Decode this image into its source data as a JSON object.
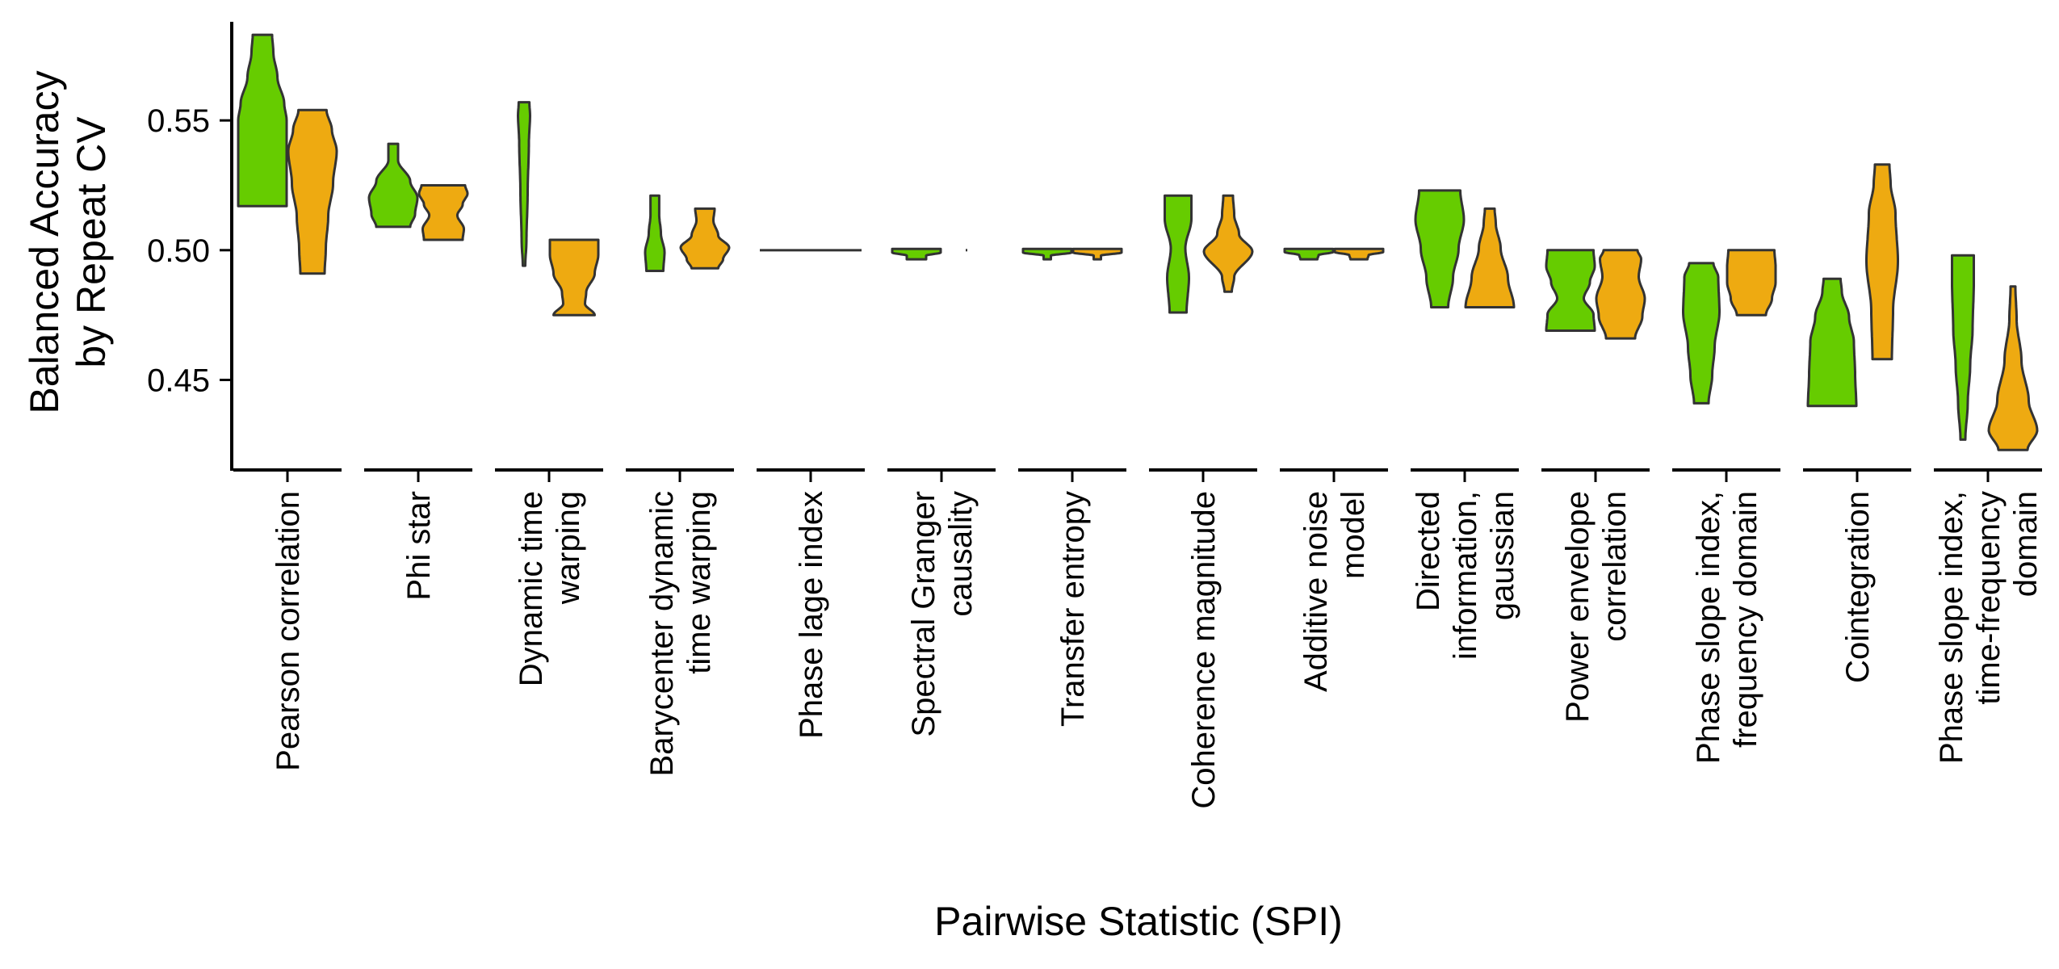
{
  "chart_data": {
    "type": "violin",
    "title": "",
    "xlabel": "Pairwise Statistic (SPI)",
    "ylabel": [
      "Balanced Accuracy",
      "by Repeat CV"
    ],
    "ylim": [
      0.415,
      0.588
    ],
    "yticks": [
      "0.45",
      "0.50",
      "0.55"
    ],
    "legend": "none",
    "grid": false,
    "series_colors": [
      "#66CC00",
      "#EEAA11"
    ],
    "outline_color": "#333333",
    "categories": [
      {
        "label": [
          "Pearson correlation"
        ],
        "violins": [
          {
            "min": 0.517,
            "max": 0.583,
            "width_profile": [
              [
                0,
                1
              ],
              [
                0.5,
                1
              ],
              [
                0.6,
                0.9
              ],
              [
                0.75,
                0.62
              ],
              [
                0.9,
                0.45
              ],
              [
                1,
                0.4
              ]
            ]
          },
          {
            "min": 0.491,
            "max": 0.554,
            "width_profile": [
              [
                0,
                0.5
              ],
              [
                0.15,
                0.55
              ],
              [
                0.35,
                0.65
              ],
              [
                0.55,
                0.85
              ],
              [
                0.75,
                1
              ],
              [
                0.88,
                0.8
              ],
              [
                1,
                0.58
              ]
            ]
          }
        ]
      },
      {
        "label": [
          "Phi star"
        ],
        "violins": [
          {
            "min": 0.509,
            "max": 0.541,
            "width_profile": [
              [
                0,
                0.7
              ],
              [
                0.15,
                0.9
              ],
              [
                0.35,
                1
              ],
              [
                0.55,
                0.7
              ],
              [
                0.8,
                0.2
              ],
              [
                1,
                0.2
              ]
            ]
          },
          {
            "min": 0.504,
            "max": 0.525,
            "width_profile": [
              [
                0,
                0.8
              ],
              [
                0.2,
                0.85
              ],
              [
                0.45,
                0.58
              ],
              [
                0.65,
                0.8
              ],
              [
                0.85,
                1
              ],
              [
                1,
                0.9
              ]
            ]
          }
        ]
      },
      {
        "label": [
          "Dynamic time",
          "warping"
        ],
        "violins": [
          {
            "min": 0.494,
            "max": 0.557,
            "width_profile": [
              [
                0,
                0.05
              ],
              [
                0.15,
                0.1
              ],
              [
                0.45,
                0.15
              ],
              [
                0.75,
                0.2
              ],
              [
                0.92,
                0.25
              ],
              [
                1,
                0.22
              ]
            ]
          },
          {
            "min": 0.475,
            "max": 0.504,
            "width_profile": [
              [
                0,
                0.85
              ],
              [
                0.15,
                0.45
              ],
              [
                0.3,
                0.5
              ],
              [
                0.55,
                0.85
              ],
              [
                0.8,
                1
              ],
              [
                1,
                1
              ]
            ]
          }
        ]
      },
      {
        "label": [
          "Barycenter dynamic",
          "time warping"
        ],
        "violins": [
          {
            "min": 0.492,
            "max": 0.521,
            "width_profile": [
              [
                0,
                0.35
              ],
              [
                0.25,
                0.4
              ],
              [
                0.5,
                0.25
              ],
              [
                0.75,
                0.18
              ],
              [
                1,
                0.18
              ]
            ]
          },
          {
            "min": 0.493,
            "max": 0.516,
            "width_profile": [
              [
                0,
                0.55
              ],
              [
                0.15,
                0.75
              ],
              [
                0.35,
                1
              ],
              [
                0.55,
                0.55
              ],
              [
                0.8,
                0.35
              ],
              [
                1,
                0.4
              ]
            ]
          }
        ]
      },
      {
        "label": [
          "Phase lage index"
        ],
        "violins": [
          {
            "min": 0.5,
            "max": 0.5,
            "flat_halfwidth_px": 63
          }
        ]
      },
      {
        "label": [
          "Spectral Granger",
          "causality"
        ],
        "violins": [
          {
            "min": 0.4965,
            "max": 0.5005,
            "width_profile": [
              [
                0,
                0.4
              ],
              [
                0.35,
                0.4
              ],
              [
                0.65,
                1
              ],
              [
                1,
                1
              ]
            ]
          },
          {
            "min": 0.5,
            "max": 0.5,
            "flat_halfwidth_px": 1
          }
        ]
      },
      {
        "label": [
          "Transfer entropy"
        ],
        "violins": [
          {
            "min": 0.4965,
            "max": 0.5005,
            "width_profile": [
              [
                0,
                0.15
              ],
              [
                0.35,
                0.15
              ],
              [
                0.65,
                1
              ],
              [
                1,
                1
              ]
            ]
          },
          {
            "min": 0.4965,
            "max": 0.5005,
            "width_profile": [
              [
                0,
                0.15
              ],
              [
                0.35,
                0.15
              ],
              [
                0.65,
                1
              ],
              [
                1,
                1
              ]
            ]
          }
        ]
      },
      {
        "label": [
          "Coherence magnitude"
        ],
        "violins": [
          {
            "min": 0.476,
            "max": 0.521,
            "width_profile": [
              [
                0,
                0.35
              ],
              [
                0.3,
                0.45
              ],
              [
                0.55,
                0.3
              ],
              [
                0.8,
                0.55
              ],
              [
                1,
                0.55
              ]
            ]
          },
          {
            "min": 0.484,
            "max": 0.521,
            "width_profile": [
              [
                0,
                0.15
              ],
              [
                0.15,
                0.25
              ],
              [
                0.42,
                1
              ],
              [
                0.6,
                0.45
              ],
              [
                0.8,
                0.25
              ],
              [
                1,
                0.2
              ]
            ]
          }
        ]
      },
      {
        "label": [
          "Additive noise",
          "model"
        ],
        "violins": [
          {
            "min": 0.4965,
            "max": 0.5005,
            "width_profile": [
              [
                0,
                0.35
              ],
              [
                0.4,
                0.4
              ],
              [
                0.7,
                1
              ],
              [
                1,
                1
              ]
            ]
          },
          {
            "min": 0.4965,
            "max": 0.5005,
            "width_profile": [
              [
                0,
                0.35
              ],
              [
                0.4,
                0.4
              ],
              [
                0.7,
                1
              ],
              [
                1,
                1
              ]
            ]
          }
        ]
      },
      {
        "label": [
          "Directed",
          "information,",
          "gaussian"
        ],
        "violins": [
          {
            "min": 0.478,
            "max": 0.523,
            "width_profile": [
              [
                0,
                0.35
              ],
              [
                0.25,
                0.55
              ],
              [
                0.5,
                0.78
              ],
              [
                0.75,
                1
              ],
              [
                1,
                0.85
              ]
            ]
          },
          {
            "min": 0.478,
            "max": 0.516,
            "width_profile": [
              [
                0,
                1
              ],
              [
                0.3,
                0.75
              ],
              [
                0.6,
                0.45
              ],
              [
                0.85,
                0.25
              ],
              [
                1,
                0.2
              ]
            ]
          }
        ]
      },
      {
        "label": [
          "Power envelope",
          "correlation"
        ],
        "violins": [
          {
            "min": 0.469,
            "max": 0.5,
            "width_profile": [
              [
                0,
                1
              ],
              [
                0.2,
                0.95
              ],
              [
                0.4,
                0.55
              ],
              [
                0.6,
                0.8
              ],
              [
                0.8,
                1
              ],
              [
                1,
                0.95
              ]
            ]
          },
          {
            "min": 0.466,
            "max": 0.5,
            "width_profile": [
              [
                0,
                0.6
              ],
              [
                0.25,
                0.9
              ],
              [
                0.45,
                1
              ],
              [
                0.7,
                0.75
              ],
              [
                0.9,
                0.85
              ],
              [
                1,
                0.7
              ]
            ]
          }
        ]
      },
      {
        "label": [
          "Phase slope index,",
          "frequency domain"
        ],
        "violins": [
          {
            "min": 0.441,
            "max": 0.495,
            "width_profile": [
              [
                0,
                0.3
              ],
              [
                0.2,
                0.45
              ],
              [
                0.4,
                0.55
              ],
              [
                0.65,
                0.75
              ],
              [
                0.9,
                0.7
              ],
              [
                1,
                0.5
              ]
            ]
          },
          {
            "min": 0.475,
            "max": 0.5,
            "width_profile": [
              [
                0,
                0.6
              ],
              [
                0.25,
                0.85
              ],
              [
                0.5,
                1
              ],
              [
                0.75,
                1
              ],
              [
                1,
                0.95
              ]
            ]
          }
        ]
      },
      {
        "label": [
          "Cointegration"
        ],
        "violins": [
          {
            "min": 0.44,
            "max": 0.489,
            "width_profile": [
              [
                0,
                1
              ],
              [
                0.25,
                0.95
              ],
              [
                0.5,
                0.9
              ],
              [
                0.7,
                0.7
              ],
              [
                0.9,
                0.4
              ],
              [
                1,
                0.35
              ]
            ]
          },
          {
            "min": 0.458,
            "max": 0.533,
            "width_profile": [
              [
                0,
                0.4
              ],
              [
                0.25,
                0.45
              ],
              [
                0.5,
                0.65
              ],
              [
                0.75,
                0.55
              ],
              [
                0.9,
                0.35
              ],
              [
                1,
                0.3
              ]
            ]
          }
        ]
      },
      {
        "label": [
          "Phase slope index,",
          "time-frequency",
          "domain"
        ],
        "violins": [
          {
            "min": 0.427,
            "max": 0.498,
            "width_profile": [
              [
                0,
                0.1
              ],
              [
                0.2,
                0.2
              ],
              [
                0.4,
                0.3
              ],
              [
                0.6,
                0.4
              ],
              [
                0.85,
                0.45
              ],
              [
                1,
                0.45
              ]
            ]
          },
          {
            "min": 0.423,
            "max": 0.486,
            "width_profile": [
              [
                0,
                0.6
              ],
              [
                0.12,
                1
              ],
              [
                0.3,
                0.65
              ],
              [
                0.55,
                0.35
              ],
              [
                0.8,
                0.15
              ],
              [
                1,
                0.1
              ]
            ]
          }
        ]
      }
    ]
  }
}
